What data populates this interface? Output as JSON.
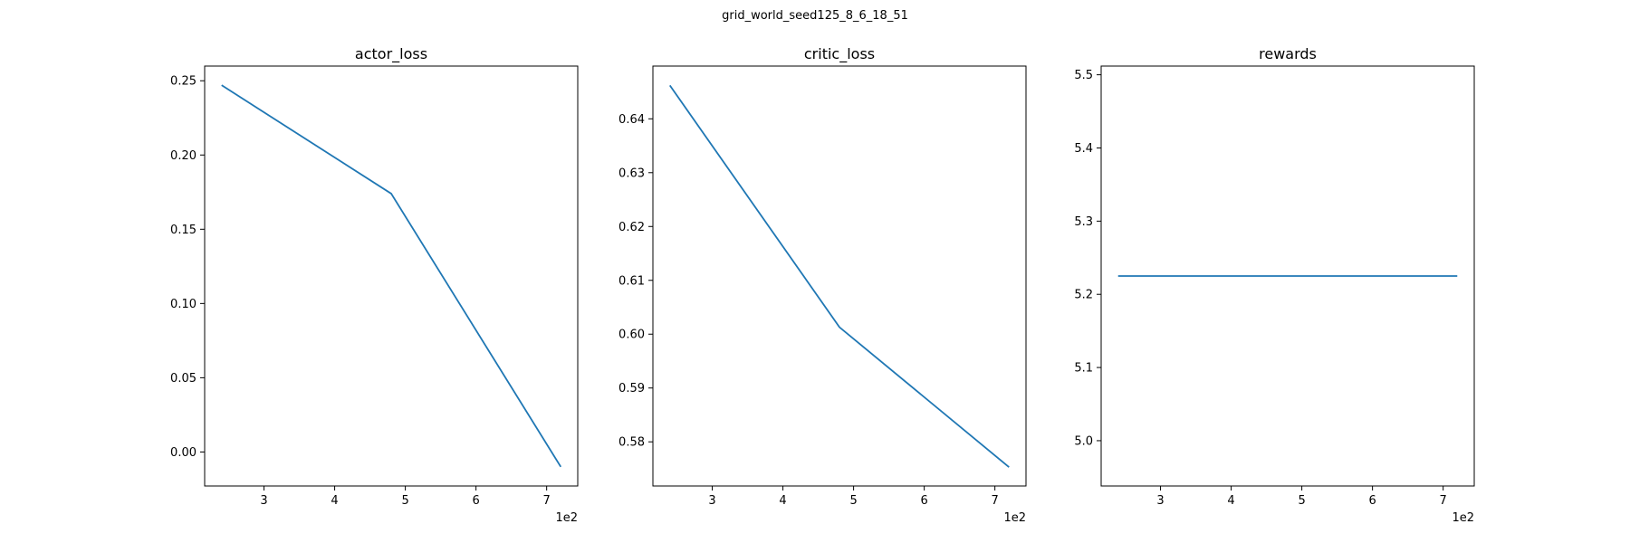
{
  "figure_title": "grid_world_seed125_8_6_18_51",
  "colors": {
    "line": "#1f77b4",
    "axes": "#000000",
    "background": "#ffffff"
  },
  "chart_data": [
    {
      "type": "line",
      "title": "actor_loss",
      "xlabel": "",
      "ylabel": "",
      "x": [
        240,
        480,
        720
      ],
      "series": [
        {
          "values": [
            0.247,
            0.174,
            -0.01
          ]
        }
      ],
      "xlim": [
        216,
        744
      ],
      "ylim": [
        -0.0229,
        0.2599
      ],
      "xticks": [
        300,
        400,
        500,
        600,
        700
      ],
      "xtick_labels": [
        "3",
        "4",
        "5",
        "6",
        "7"
      ],
      "x_offset_label": "1e2",
      "yticks": [
        0.0,
        0.05,
        0.1,
        0.15,
        0.2,
        0.25
      ],
      "ytick_labels": [
        "0.00",
        "0.05",
        "0.10",
        "0.15",
        "0.20",
        "0.25"
      ],
      "grid": false,
      "legend": "none"
    },
    {
      "type": "line",
      "title": "critic_loss",
      "xlabel": "",
      "ylabel": "",
      "x": [
        240,
        480,
        720
      ],
      "series": [
        {
          "values": [
            0.6462,
            0.6013,
            0.5753
          ]
        }
      ],
      "xlim": [
        216,
        744
      ],
      "ylim": [
        0.5718,
        0.6498
      ],
      "xticks": [
        300,
        400,
        500,
        600,
        700
      ],
      "xtick_labels": [
        "3",
        "4",
        "5",
        "6",
        "7"
      ],
      "x_offset_label": "1e2",
      "yticks": [
        0.58,
        0.59,
        0.6,
        0.61,
        0.62,
        0.63,
        0.64
      ],
      "ytick_labels": [
        "0.58",
        "0.59",
        "0.60",
        "0.61",
        "0.62",
        "0.63",
        "0.64"
      ],
      "grid": false,
      "legend": "none"
    },
    {
      "type": "line",
      "title": "rewards",
      "xlabel": "",
      "ylabel": "",
      "x": [
        240,
        480,
        720
      ],
      "series": [
        {
          "values": [
            5.225,
            5.225,
            5.225
          ]
        }
      ],
      "xlim": [
        216,
        744
      ],
      "ylim": [
        4.9381,
        5.5119
      ],
      "xticks": [
        300,
        400,
        500,
        600,
        700
      ],
      "xtick_labels": [
        "3",
        "4",
        "5",
        "6",
        "7"
      ],
      "x_offset_label": "1e2",
      "yticks": [
        5.0,
        5.1,
        5.2,
        5.3,
        5.4,
        5.5
      ],
      "ytick_labels": [
        "5.0",
        "5.1",
        "5.2",
        "5.3",
        "5.4",
        "5.5"
      ],
      "grid": false,
      "legend": "none"
    }
  ]
}
